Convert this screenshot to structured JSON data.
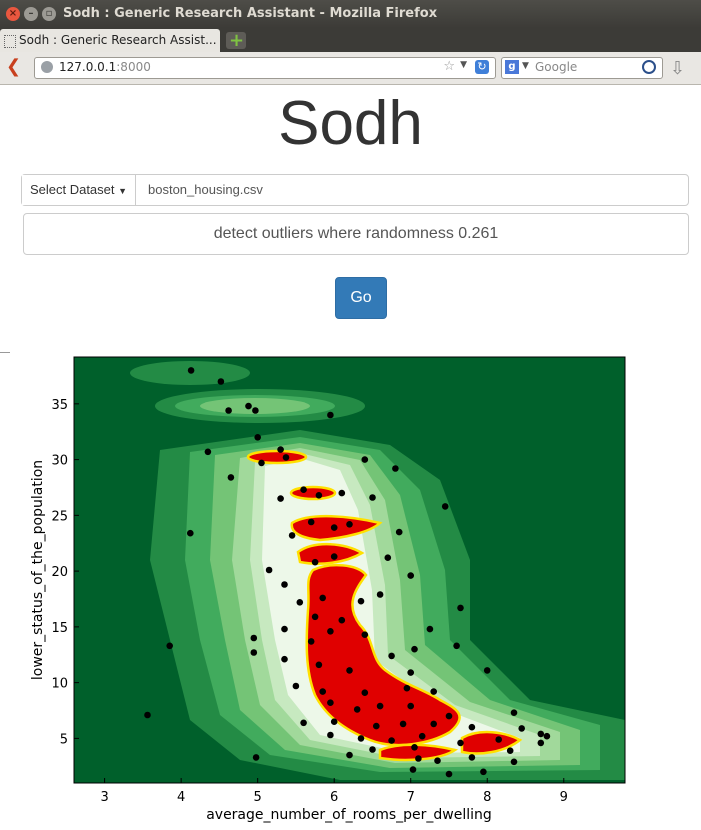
{
  "window": {
    "title": "Sodh : Generic Research Assistant - Mozilla Firefox",
    "close_glyph": "×",
    "min_glyph": "–",
    "max_glyph": "▫"
  },
  "tab": {
    "label": "Sodh : Generic Research Assist..."
  },
  "navbar": {
    "url_host": "127.0.0.1",
    "url_port": ":8000",
    "search_placeholder": "Google"
  },
  "page": {
    "brand": "Sodh",
    "dataset_button": "Select Dataset",
    "dataset_value": "boston_housing.csv",
    "query": "detect outliers where randomness 0.261",
    "go_label": "Go"
  },
  "chart_data": {
    "type": "scatter",
    "xlabel": "average_number_of_rooms_per_dwelling",
    "ylabel": "lower_status_of_the_population",
    "xlim": [
      2.6,
      9.8
    ],
    "ylim": [
      1,
      39.2
    ],
    "x_ticks": [
      3,
      4,
      5,
      6,
      7,
      8,
      9
    ],
    "y_ticks": [
      5,
      10,
      15,
      20,
      25,
      30,
      35
    ],
    "overlay": "kernel density contours (greens) with red high-density regions outlined in yellow",
    "colors": {
      "background": "#00602b",
      "dense": "#e00000",
      "outline": "#ffe000",
      "points": "#000000"
    },
    "points": [
      [
        4.13,
        38.0
      ],
      [
        4.52,
        37.0
      ],
      [
        4.88,
        34.8
      ],
      [
        4.97,
        34.4
      ],
      [
        4.62,
        34.4
      ],
      [
        5.95,
        34.0
      ],
      [
        5.0,
        32.0
      ],
      [
        4.35,
        30.7
      ],
      [
        5.3,
        30.9
      ],
      [
        5.37,
        30.2
      ],
      [
        5.05,
        29.7
      ],
      [
        6.4,
        30.0
      ],
      [
        6.8,
        29.2
      ],
      [
        4.65,
        28.4
      ],
      [
        5.6,
        27.3
      ],
      [
        5.8,
        26.8
      ],
      [
        5.3,
        26.5
      ],
      [
        6.1,
        27.0
      ],
      [
        6.5,
        26.6
      ],
      [
        7.45,
        25.8
      ],
      [
        4.12,
        23.4
      ],
      [
        5.45,
        23.2
      ],
      [
        5.7,
        24.4
      ],
      [
        6.0,
        23.9
      ],
      [
        6.2,
        24.2
      ],
      [
        6.85,
        23.5
      ],
      [
        5.15,
        20.1
      ],
      [
        5.75,
        20.8
      ],
      [
        6.0,
        21.3
      ],
      [
        6.7,
        21.2
      ],
      [
        7.0,
        19.6
      ],
      [
        5.35,
        18.8
      ],
      [
        5.55,
        17.2
      ],
      [
        5.85,
        17.6
      ],
      [
        6.35,
        17.3
      ],
      [
        6.6,
        17.9
      ],
      [
        7.65,
        16.7
      ],
      [
        5.75,
        15.9
      ],
      [
        6.1,
        15.6
      ],
      [
        7.25,
        14.8
      ],
      [
        5.35,
        14.8
      ],
      [
        5.95,
        14.6
      ],
      [
        6.4,
        14.3
      ],
      [
        5.7,
        13.7
      ],
      [
        4.95,
        14.0
      ],
      [
        7.05,
        13.0
      ],
      [
        3.85,
        13.3
      ],
      [
        5.35,
        12.1
      ],
      [
        6.75,
        12.4
      ],
      [
        4.95,
        12.7
      ],
      [
        7.6,
        13.3
      ],
      [
        5.8,
        11.6
      ],
      [
        6.2,
        11.1
      ],
      [
        7.0,
        10.9
      ],
      [
        8.0,
        11.1
      ],
      [
        5.5,
        9.7
      ],
      [
        5.85,
        9.2
      ],
      [
        6.4,
        9.1
      ],
      [
        6.95,
        9.5
      ],
      [
        7.3,
        9.2
      ],
      [
        5.95,
        8.2
      ],
      [
        6.3,
        7.6
      ],
      [
        6.6,
        7.9
      ],
      [
        7.0,
        7.9
      ],
      [
        7.5,
        7.0
      ],
      [
        3.56,
        7.1
      ],
      [
        5.6,
        6.4
      ],
      [
        6.0,
        6.5
      ],
      [
        6.55,
        6.1
      ],
      [
        6.9,
        6.3
      ],
      [
        7.3,
        6.3
      ],
      [
        7.8,
        6.0
      ],
      [
        8.35,
        7.3
      ],
      [
        8.45,
        5.9
      ],
      [
        5.95,
        5.3
      ],
      [
        6.35,
        5.0
      ],
      [
        6.75,
        4.8
      ],
      [
        7.15,
        5.2
      ],
      [
        7.65,
        4.6
      ],
      [
        8.15,
        4.9
      ],
      [
        8.7,
        5.4
      ],
      [
        8.78,
        5.2
      ],
      [
        8.7,
        4.6
      ],
      [
        6.5,
        4.0
      ],
      [
        7.05,
        4.2
      ],
      [
        8.3,
        3.9
      ],
      [
        4.98,
        3.3
      ],
      [
        6.2,
        3.5
      ],
      [
        7.1,
        3.2
      ],
      [
        7.35,
        3.0
      ],
      [
        7.8,
        3.3
      ],
      [
        8.35,
        2.9
      ],
      [
        7.95,
        2.0
      ],
      [
        7.5,
        1.8
      ],
      [
        7.03,
        2.2
      ]
    ]
  }
}
